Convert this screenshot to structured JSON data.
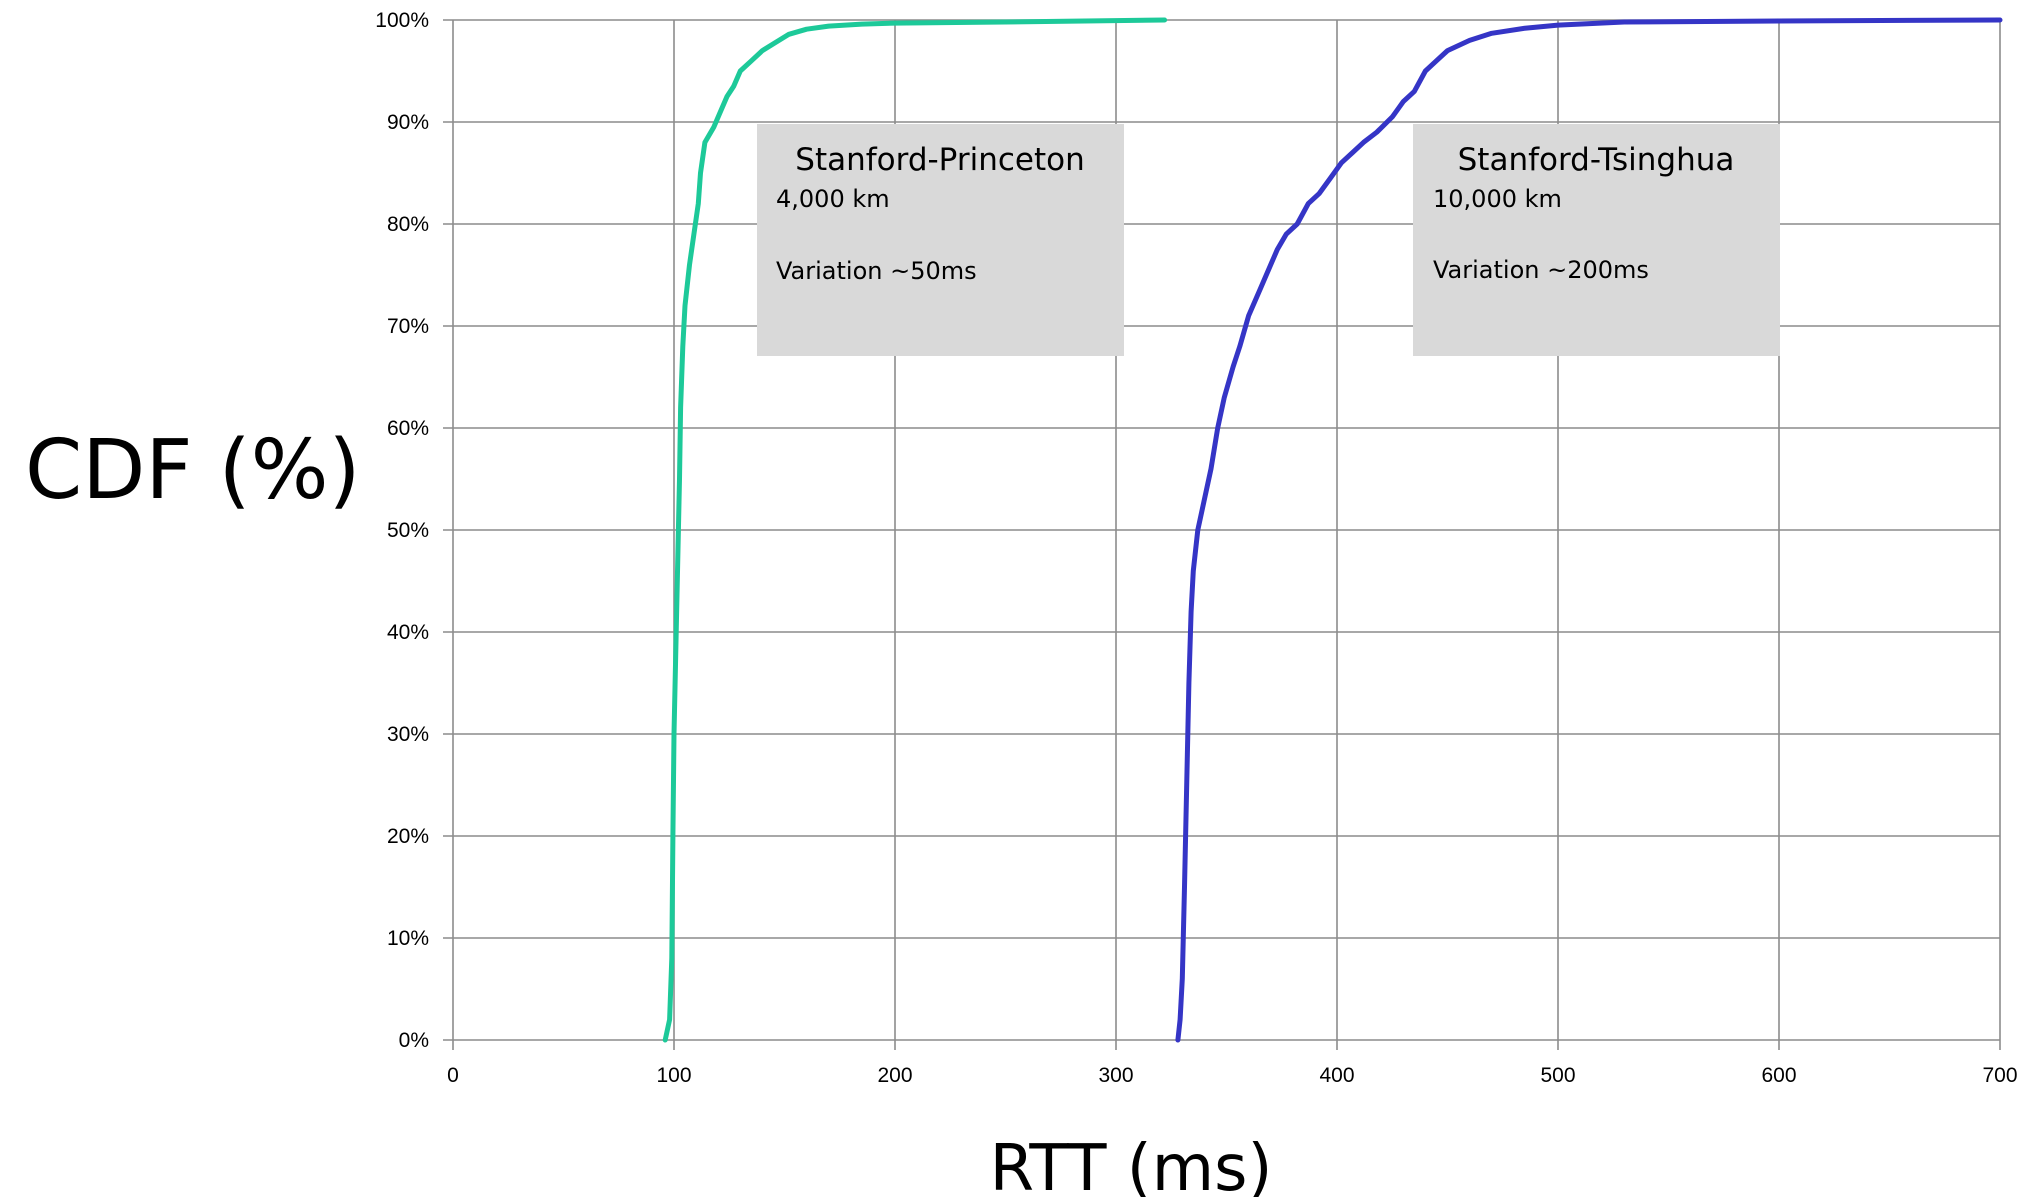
{
  "chart_data": {
    "type": "line",
    "title": "",
    "xlabel": "RTT (ms)",
    "ylabel": "CDF (%)",
    "xlim": [
      0,
      700
    ],
    "ylim": [
      0,
      100
    ],
    "x_ticks": [
      0,
      100,
      200,
      300,
      400,
      500,
      600,
      700
    ],
    "y_ticks": [
      0,
      10,
      20,
      30,
      40,
      50,
      60,
      70,
      80,
      90,
      100
    ],
    "y_tick_labels": [
      "0%",
      "10%",
      "20%",
      "30%",
      "40%",
      "50%",
      "60%",
      "70%",
      "80%",
      "90%",
      "100%"
    ],
    "grid": true,
    "legend": "none",
    "series": [
      {
        "color": "#1dc999",
        "points": [
          [
            96,
            0
          ],
          [
            98,
            2
          ],
          [
            99,
            8
          ],
          [
            99.5,
            20
          ],
          [
            100,
            30
          ],
          [
            101,
            40
          ],
          [
            102,
            50
          ],
          [
            102.5,
            55
          ],
          [
            103,
            62
          ],
          [
            104,
            68
          ],
          [
            105,
            72
          ],
          [
            107,
            76
          ],
          [
            109,
            79
          ],
          [
            111,
            82
          ],
          [
            112,
            85
          ],
          [
            114,
            88
          ],
          [
            118,
            89.5
          ],
          [
            121,
            91
          ],
          [
            124,
            92.5
          ],
          [
            127,
            93.5
          ],
          [
            130,
            95
          ],
          [
            135,
            96
          ],
          [
            140,
            97
          ],
          [
            146,
            97.8
          ],
          [
            152,
            98.6
          ],
          [
            160,
            99.1
          ],
          [
            170,
            99.4
          ],
          [
            185,
            99.6
          ],
          [
            200,
            99.7
          ],
          [
            250,
            99.8
          ],
          [
            322,
            100
          ]
        ]
      },
      {
        "color": "#3535c6",
        "points": [
          [
            328,
            0
          ],
          [
            329,
            2
          ],
          [
            330,
            6
          ],
          [
            331,
            15
          ],
          [
            332,
            25
          ],
          [
            333,
            35
          ],
          [
            334,
            42
          ],
          [
            335,
            46
          ],
          [
            337,
            50
          ],
          [
            340,
            53
          ],
          [
            343,
            56
          ],
          [
            346,
            60
          ],
          [
            349,
            63
          ],
          [
            353,
            66
          ],
          [
            356,
            68
          ],
          [
            360,
            71
          ],
          [
            365,
            73.5
          ],
          [
            370,
            76
          ],
          [
            373,
            77.5
          ],
          [
            377,
            79
          ],
          [
            382,
            80
          ],
          [
            387,
            82
          ],
          [
            392,
            83
          ],
          [
            397,
            84.5
          ],
          [
            402,
            86
          ],
          [
            407,
            87
          ],
          [
            412,
            88
          ],
          [
            418,
            89
          ],
          [
            425,
            90.5
          ],
          [
            430,
            92
          ],
          [
            435,
            93
          ],
          [
            440,
            95
          ],
          [
            445,
            96
          ],
          [
            450,
            97
          ],
          [
            460,
            98
          ],
          [
            470,
            98.7
          ],
          [
            485,
            99.2
          ],
          [
            500,
            99.5
          ],
          [
            530,
            99.8
          ],
          [
            600,
            99.9
          ],
          [
            700,
            100
          ]
        ]
      }
    ],
    "annotations": [
      {
        "title": "Stanford-Princeton",
        "distance": "4,000 km",
        "variation": "Variation ~50ms"
      },
      {
        "title": "Stanford-Tsinghua",
        "distance": "10,000 km",
        "variation": "Variation ~200ms"
      }
    ]
  },
  "colors": {
    "annotation_box": "#d9d9d9",
    "grid": "#8c8c8c"
  }
}
